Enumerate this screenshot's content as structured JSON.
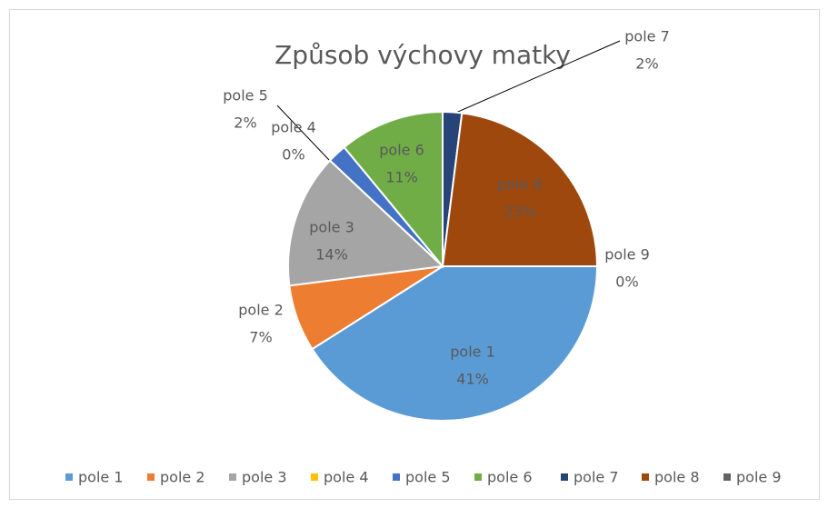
{
  "chart_data": {
    "type": "pie",
    "title": "Způsob výchovy matky",
    "categories": [
      "pole 1",
      "pole 2",
      "pole 3",
      "pole 4",
      "pole 5",
      "pole 6",
      "pole 7",
      "pole 8",
      "pole 9"
    ],
    "values": [
      41,
      7,
      14,
      0,
      2,
      11,
      2,
      23,
      0
    ],
    "value_labels": [
      "41%",
      "7%",
      "14%",
      "0%",
      "2%",
      "11%",
      "2%",
      "23%",
      "0%"
    ],
    "colors": [
      "#5b9bd5",
      "#ed7d31",
      "#a5a5a5",
      "#ffc000",
      "#4472c4",
      "#70ad47",
      "#264478",
      "#9e480e",
      "#636363"
    ],
    "legend": "bottom"
  }
}
